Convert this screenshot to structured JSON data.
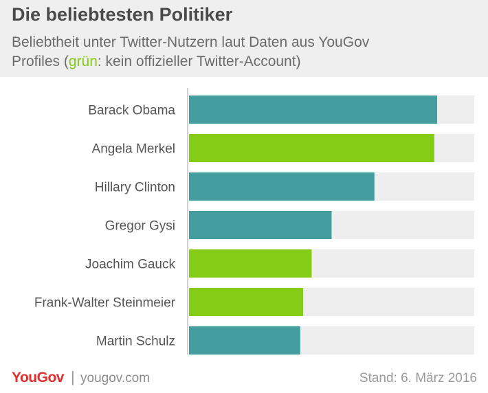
{
  "header": {
    "title": "Die beliebtesten Politiker",
    "subtitle_line1": "Beliebtheit unter Twitter-Nutzern laut Daten aus YouGov",
    "subtitle_pre": "Profiles (",
    "subtitle_green": "grün",
    "subtitle_post": ": kein offizieller Twitter-Account)"
  },
  "colors": {
    "twitter_account": "#449e9f",
    "no_twitter_account": "#84cc16",
    "track": "#eeeeee",
    "axis": "#d0d0d0",
    "label": "#555555"
  },
  "chart_data": {
    "type": "bar",
    "orientation": "horizontal",
    "categories": [
      "Barack Obama",
      "Angela Merkel",
      "Hillary Clinton",
      "Gregor Gysi",
      "Joachim Gauck",
      "Frank-Walter Steinmeier",
      "Martin Schulz"
    ],
    "values": [
      87,
      86,
      65,
      50,
      43,
      40,
      39
    ],
    "official_twitter_account": [
      true,
      false,
      true,
      true,
      false,
      false,
      true
    ],
    "xlim": [
      0,
      100
    ],
    "grid": false,
    "value_labels": false
  },
  "footer": {
    "logo": "YouGov",
    "separator": "|",
    "url": "yougov.com",
    "date": "Stand: 6. März 2016"
  }
}
